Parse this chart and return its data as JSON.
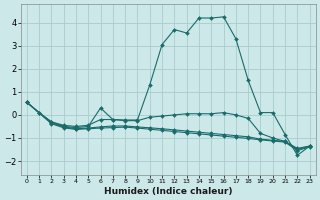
{
  "xlabel": "Humidex (Indice chaleur)",
  "bg_color": "#cce8e8",
  "grid_color": "#aacccc",
  "line_color": "#1a6b6b",
  "xlim": [
    -0.5,
    23.5
  ],
  "ylim": [
    -2.6,
    4.8
  ],
  "xticks": [
    0,
    1,
    2,
    3,
    4,
    5,
    6,
    7,
    8,
    9,
    10,
    11,
    12,
    13,
    14,
    15,
    16,
    17,
    18,
    19,
    20,
    21,
    22,
    23
  ],
  "yticks": [
    -2,
    -1,
    0,
    1,
    2,
    3,
    4
  ],
  "line1_x": [
    0,
    1,
    2,
    3,
    4,
    5,
    6,
    7,
    8,
    9,
    10,
    11,
    12,
    13,
    14,
    15,
    16,
    17,
    18,
    19,
    20,
    21,
    22,
    23
  ],
  "line1_y": [
    0.55,
    0.1,
    -0.3,
    -0.5,
    -0.55,
    -0.5,
    0.3,
    -0.2,
    -0.22,
    -0.22,
    1.3,
    3.05,
    3.7,
    3.55,
    4.2,
    4.2,
    4.25,
    3.3,
    1.5,
    0.1,
    0.1,
    -0.85,
    -1.75,
    -1.35
  ],
  "line2_x": [
    0,
    1,
    2,
    3,
    4,
    5,
    6,
    7,
    8,
    9,
    10,
    11,
    12,
    13,
    14,
    15,
    16,
    17,
    18,
    19,
    20,
    21,
    22,
    23
  ],
  "line2_y": [
    0.55,
    0.1,
    -0.3,
    -0.45,
    -0.5,
    -0.45,
    -0.2,
    -0.2,
    -0.25,
    -0.25,
    -0.1,
    -0.05,
    0.0,
    0.05,
    0.05,
    0.05,
    0.1,
    0.0,
    -0.15,
    -0.8,
    -1.0,
    -1.15,
    -1.45,
    -1.35
  ],
  "line3_x": [
    0,
    2,
    3,
    4,
    5,
    6,
    7,
    8,
    9,
    10,
    11,
    12,
    13,
    14,
    15,
    16,
    17,
    18,
    19,
    20,
    21,
    22,
    23
  ],
  "line3_y": [
    0.55,
    -0.35,
    -0.52,
    -0.6,
    -0.57,
    -0.52,
    -0.48,
    -0.48,
    -0.52,
    -0.56,
    -0.6,
    -0.65,
    -0.7,
    -0.75,
    -0.8,
    -0.85,
    -0.9,
    -0.95,
    -1.05,
    -1.1,
    -1.15,
    -1.5,
    -1.35
  ],
  "line4_x": [
    0,
    2,
    3,
    4,
    5,
    6,
    7,
    8,
    9,
    10,
    11,
    12,
    13,
    14,
    15,
    16,
    17,
    18,
    19,
    20,
    21,
    22,
    23
  ],
  "line4_y": [
    0.55,
    -0.38,
    -0.56,
    -0.63,
    -0.6,
    -0.57,
    -0.55,
    -0.53,
    -0.57,
    -0.62,
    -0.67,
    -0.72,
    -0.77,
    -0.82,
    -0.87,
    -0.92,
    -0.97,
    -1.02,
    -1.08,
    -1.13,
    -1.18,
    -1.55,
    -1.38
  ]
}
